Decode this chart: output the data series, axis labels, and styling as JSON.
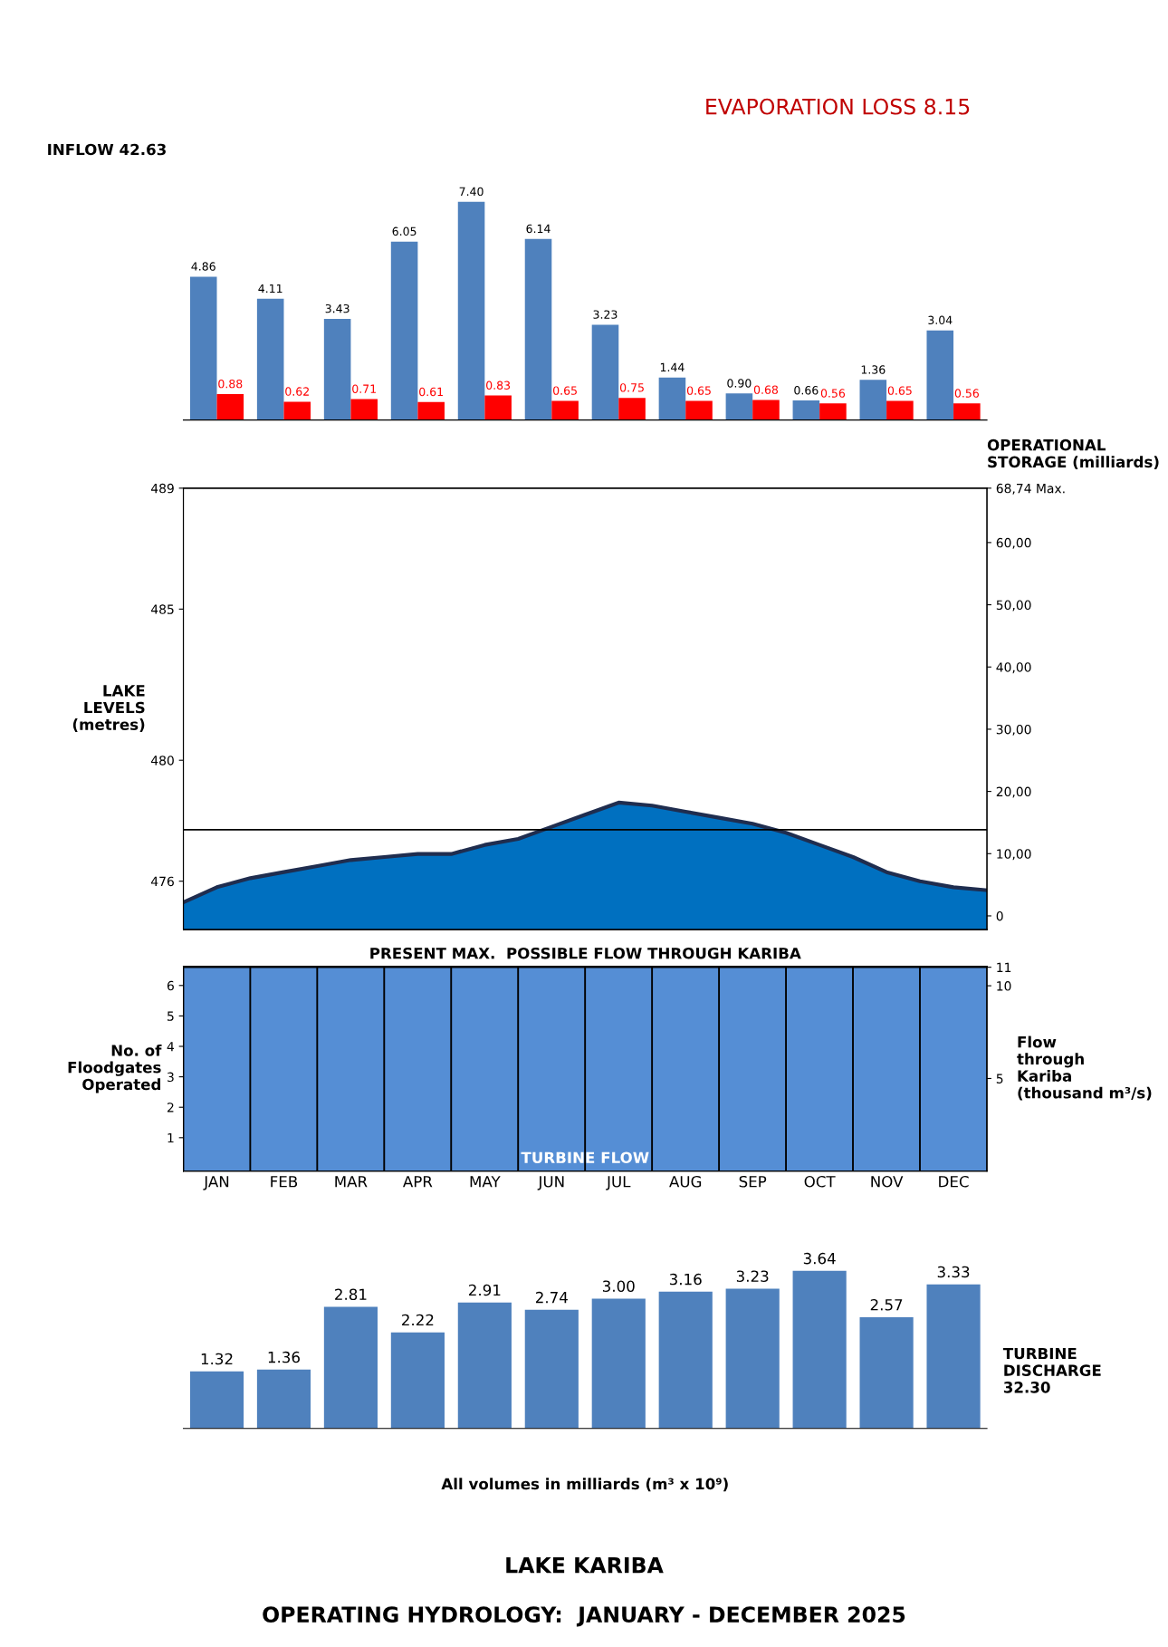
{
  "chart_data": [
    {
      "type": "bar",
      "categories": [
        null,
        null,
        null,
        null,
        null,
        null,
        null,
        null,
        null,
        null,
        null,
        null
      ],
      "series": [
        {
          "color": "#4f81bd",
          "values": [
            4.86,
            4.11,
            3.43,
            6.05,
            7.4,
            6.14,
            3.23,
            1.44,
            0.9,
            0.66,
            1.36,
            3.04
          ],
          "value_labels": [
            "4.86",
            "4.11",
            "3.43",
            "6.05",
            "7.40",
            "6.14",
            "3.23",
            "1.44",
            "0.90",
            "0.66",
            "1.36",
            "3.04"
          ]
        },
        {
          "color": "#ff0000",
          "values": [
            0.88,
            0.62,
            0.71,
            0.61,
            0.83,
            0.65,
            0.75,
            0.65,
            0.68,
            0.56,
            0.65,
            0.56
          ],
          "value_labels": [
            "0.88",
            "0.62",
            "0.71",
            "0.61",
            "0.83",
            "0.65",
            "0.75",
            "0.65",
            "0.68",
            "0.56",
            "0.65",
            "0.56"
          ]
        }
      ],
      "annotations": [
        "INFLOW 42.63",
        "EVAPORATION LOSS 8.15"
      ],
      "legend": false
    },
    {
      "type": "area",
      "categories": [
        null,
        null,
        null,
        null,
        null,
        null,
        null,
        null,
        null,
        null,
        null,
        null,
        null,
        null,
        null,
        null,
        null,
        null,
        null,
        null,
        null,
        null,
        null,
        null,
        null
      ],
      "values": [
        475.3,
        475.8,
        476.1,
        476.3,
        476.5,
        476.7,
        476.8,
        476.9,
        476.9,
        477.2,
        477.4,
        477.8,
        478.2,
        478.6,
        478.5,
        478.3,
        478.1,
        477.9,
        477.6,
        477.2,
        476.8,
        476.3,
        476.0,
        475.8,
        475.7
      ],
      "color": "#0070c0",
      "ylim": [
        474.4,
        489
      ],
      "yticks": [
        476,
        480,
        485,
        489
      ],
      "y2lim": [
        -2.2,
        68.74
      ],
      "y2ticks": [
        0,
        {
          "value": 10,
          "label": "10,00"
        },
        {
          "value": 20,
          "label": "20,00"
        },
        {
          "value": 30,
          "label": "30,00"
        },
        {
          "value": 40,
          "label": "40,00"
        },
        {
          "value": 50,
          "label": "50,00"
        },
        {
          "value": 60,
          "label": "60,00"
        },
        {
          "value": 68.74,
          "label": "68,74 Max."
        }
      ],
      "ylabel": "LAKE\nLEVELS\n(metres)",
      "y2label": "OPERATIONAL\nSTORAGE (milliards)",
      "ref_lines": [
        {
          "axis": "y",
          "value": 477.7,
          "color": "#000000"
        }
      ],
      "legend": false
    },
    {
      "type": "bar",
      "title": "PRESENT MAX.  POSSIBLE FLOW THROUGH KARIBA",
      "categories": [
        "JAN",
        "FEB",
        "MAR",
        "APR",
        "MAY",
        "JUN",
        "JUL",
        "AUG",
        "SEP",
        "OCT",
        "NOV",
        "DEC"
      ],
      "series": [
        {
          "color": "#558ed5",
          "axis": "y2",
          "values": [
            11,
            11,
            11,
            11,
            11,
            11,
            11,
            11,
            11,
            11,
            11,
            11
          ]
        }
      ],
      "ylim": [
        -0.1,
        6.63
      ],
      "yticks": [
        1,
        2,
        3,
        4,
        5,
        6
      ],
      "ylabel": "No. of\nFloodgates\nOperated",
      "y2lim": [
        0,
        11.05
      ],
      "y2ticks": [
        5,
        10,
        11
      ],
      "y2label": "Flow\nthrough\nKariba\n(thousand m³/s)",
      "annotations": [
        "TURBINE FLOW"
      ],
      "legend": false
    },
    {
      "type": "bar",
      "title": "LAKE KARIBA",
      "subtitle": "OPERATING HYDROLOGY:  JANUARY - DECEMBER 2025",
      "categories": [
        null,
        null,
        null,
        null,
        null,
        null,
        null,
        null,
        null,
        null,
        null,
        null
      ],
      "series": [
        {
          "color": "#4f81bd",
          "values": [
            1.32,
            1.36,
            2.81,
            2.22,
            2.91,
            2.74,
            3.0,
            3.16,
            3.23,
            3.64,
            2.57,
            3.33
          ],
          "value_labels": [
            "1.32",
            "1.36",
            "2.81",
            "2.22",
            "2.91",
            "2.74",
            "3.00",
            "3.16",
            "3.23",
            "3.64",
            "2.57",
            "3.33"
          ]
        }
      ],
      "annotations": [
        "TURBINE\nDISCHARGE\n32.30",
        "All volumes in milliards (m³ x 10⁹)"
      ],
      "legend": false
    }
  ]
}
